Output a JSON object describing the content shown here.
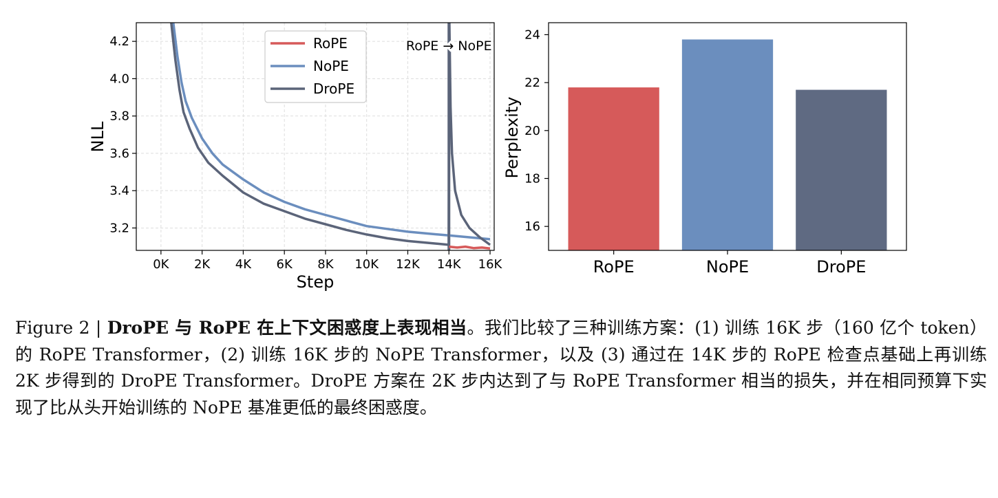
{
  "chart_data": [
    {
      "type": "line",
      "xlabel": "Step",
      "ylabel": "NLL",
      "xlim": [
        -1200,
        16200
      ],
      "ylim": [
        3.08,
        4.3
      ],
      "xticks": [
        {
          "value": 0,
          "label": "0K"
        },
        {
          "value": 2000,
          "label": "2K"
        },
        {
          "value": 4000,
          "label": "4K"
        },
        {
          "value": 6000,
          "label": "6K"
        },
        {
          "value": 8000,
          "label": "8K"
        },
        {
          "value": 10000,
          "label": "10K"
        },
        {
          "value": 12000,
          "label": "12K"
        },
        {
          "value": 14000,
          "label": "14K"
        },
        {
          "value": 16000,
          "label": "16K"
        }
      ],
      "yticks": [
        {
          "value": 3.2,
          "label": "3.2"
        },
        {
          "value": 3.4,
          "label": "3.4"
        },
        {
          "value": 3.6,
          "label": "3.6"
        },
        {
          "value": 3.8,
          "label": "3.8"
        },
        {
          "value": 4.0,
          "label": "4.0"
        },
        {
          "value": 4.2,
          "label": "4.2"
        }
      ],
      "grid": true,
      "legend_position": "top-center",
      "annotation": {
        "text": "RoPE → NoPE",
        "x": 14000
      },
      "series": [
        {
          "name": "RoPE",
          "color": "#d65a5a",
          "x": [
            14000,
            14400,
            14800,
            15200,
            15600,
            16000
          ],
          "y": [
            3.1,
            3.095,
            3.1,
            3.092,
            3.095,
            3.09
          ]
        },
        {
          "name": "NoPE",
          "color": "#6b8ebe",
          "x": [
            600,
            800,
            1000,
            1200,
            1500,
            2000,
            2500,
            3000,
            4000,
            5000,
            6000,
            7000,
            8000,
            9000,
            10000,
            11000,
            12000,
            13000,
            14000,
            15000,
            16000
          ],
          "y": [
            4.3,
            4.12,
            3.98,
            3.88,
            3.79,
            3.68,
            3.6,
            3.54,
            3.46,
            3.39,
            3.34,
            3.3,
            3.27,
            3.24,
            3.21,
            3.195,
            3.18,
            3.17,
            3.16,
            3.15,
            3.14
          ]
        },
        {
          "name": "DroPE",
          "color": "#5b6479",
          "x": [
            500,
            700,
            900,
            1100,
            1400,
            1800,
            2300,
            3000,
            4000,
            5000,
            6000,
            7000,
            8000,
            9000,
            10000,
            11000,
            12000,
            13000,
            13990,
            14020,
            14080,
            14150,
            14300,
            14600,
            15000,
            15500,
            16000
          ],
          "y": [
            4.3,
            4.1,
            3.94,
            3.82,
            3.73,
            3.63,
            3.55,
            3.48,
            3.39,
            3.33,
            3.29,
            3.25,
            3.22,
            3.19,
            3.165,
            3.145,
            3.13,
            3.12,
            3.11,
            4.3,
            3.85,
            3.6,
            3.4,
            3.27,
            3.2,
            3.15,
            3.11
          ]
        }
      ]
    },
    {
      "type": "bar",
      "ylabel": "Perplexity",
      "categories": [
        "RoPE",
        "NoPE",
        "DroPE"
      ],
      "values": [
        21.8,
        23.8,
        21.7
      ],
      "colors": [
        "#d65a5a",
        "#6b8ebe",
        "#5f6a82"
      ],
      "ylim": [
        15,
        24.5
      ],
      "yticks": [
        16,
        18,
        20,
        22,
        24
      ],
      "grid": false
    }
  ],
  "caption": {
    "label": "Figure 2 | ",
    "bold": "DroPE 与 RoPE 在上下文困惑度上表现相当",
    "body": "。我们比较了三种训练方案：(1) 训练 16K 步（160 亿个 token）的 RoPE Transformer，(2) 训练 16K 步的 NoPE Transformer，以及 (3) 通过在 14K 步的 RoPE 检查点基础上再训练 2K 步得到的 DroPE Transformer。DroPE 方案在 2K 步内达到了与 RoPE Transformer 相当的损失，并在相同预算下实现了比从头开始训练的 NoPE 基准更低的最终困惑度。"
  }
}
